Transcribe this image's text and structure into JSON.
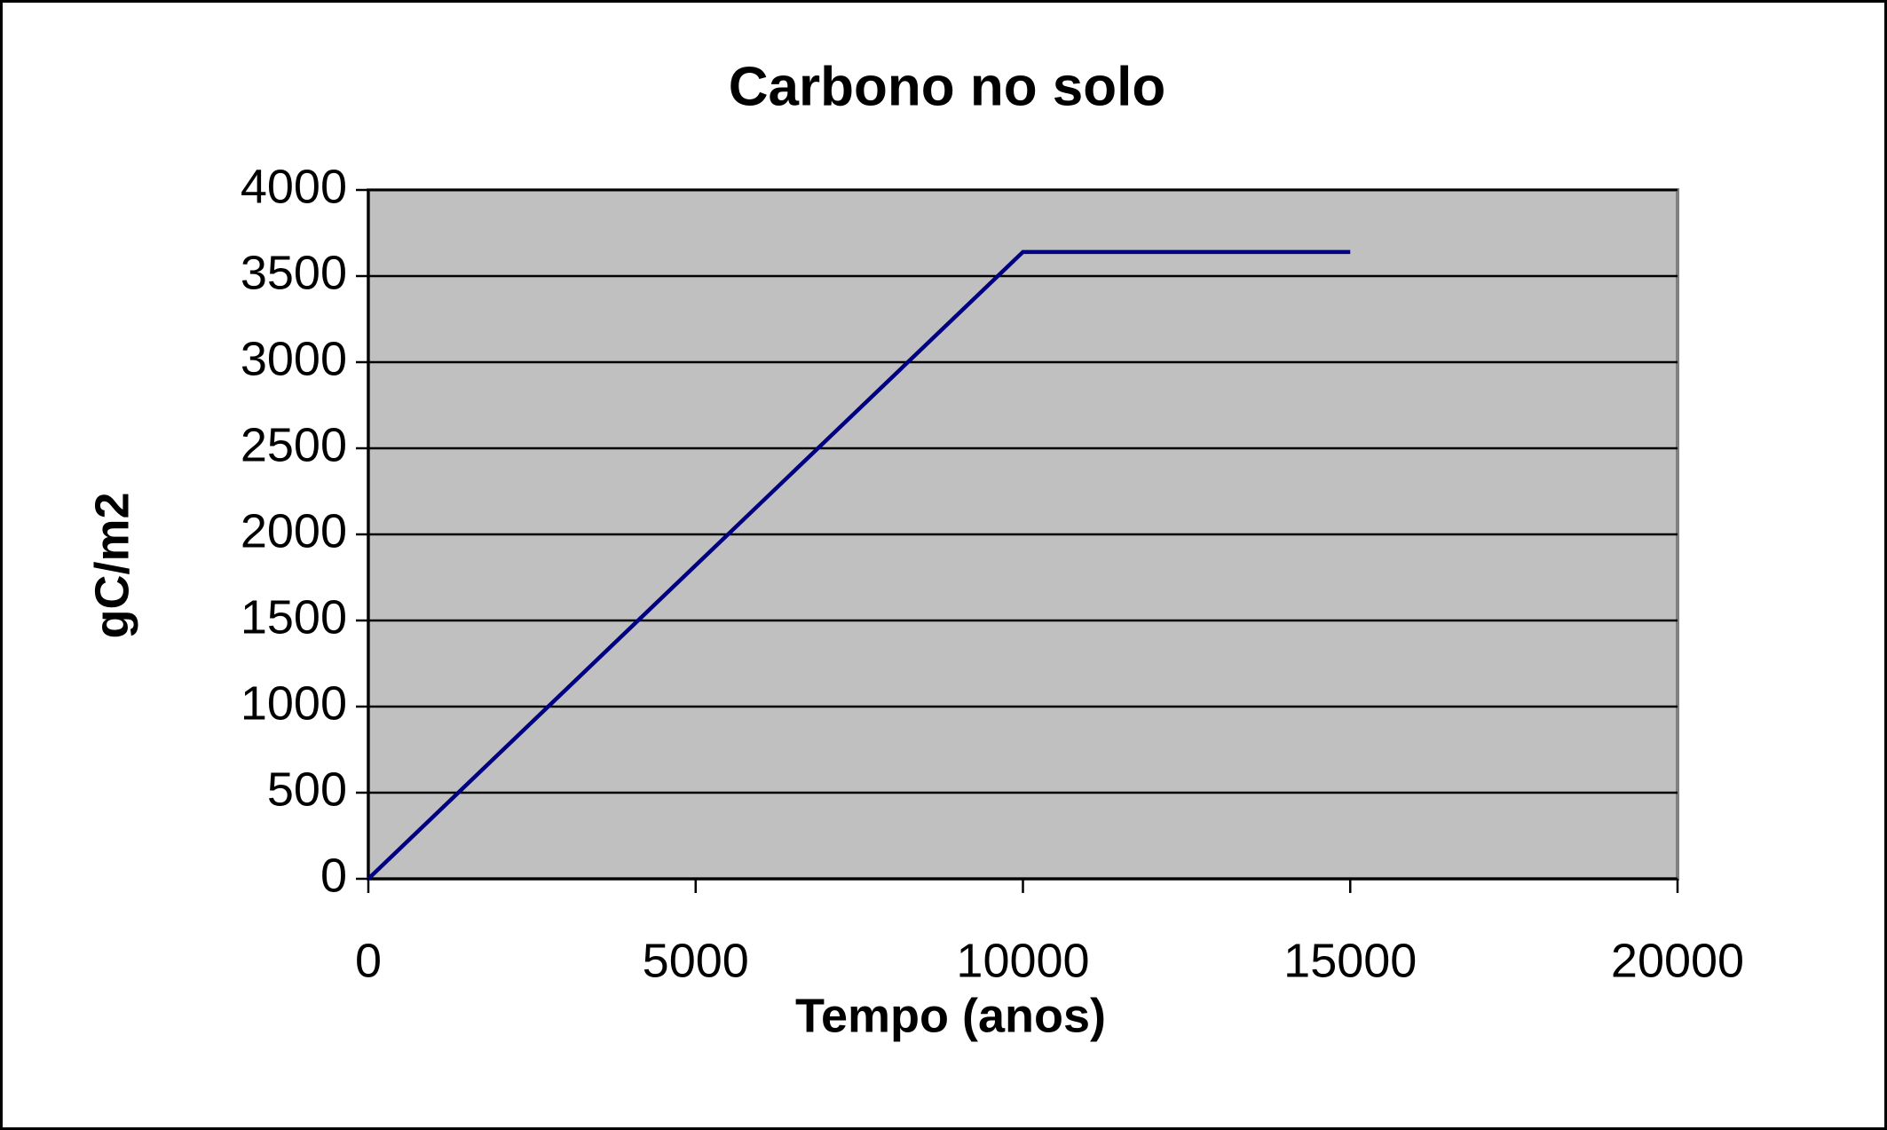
{
  "chart_data": {
    "type": "line",
    "title": "Carbono no solo",
    "xlabel": "Tempo (anos)",
    "ylabel": "gC/m2",
    "x": [
      0,
      10000,
      15000
    ],
    "values": [
      0,
      3640,
      3640
    ],
    "color": "#000080",
    "xlim": [
      0,
      20000
    ],
    "xticks": [
      0,
      5000,
      10000,
      15000,
      20000
    ],
    "ylim": [
      0,
      4000
    ],
    "yticks": [
      0,
      500,
      1000,
      1500,
      2000,
      2500,
      3000,
      3500,
      4000
    ],
    "grid": true
  }
}
